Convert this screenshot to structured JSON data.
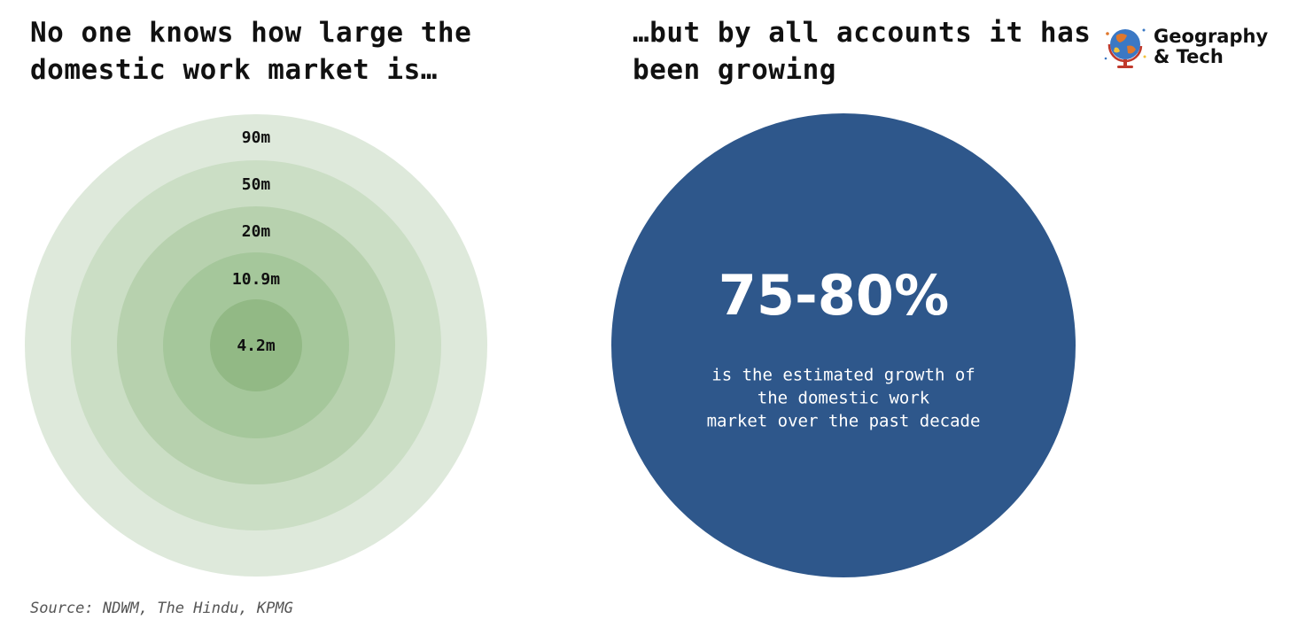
{
  "headline_left": "No one knows how large the domestic work market is…",
  "headline_right": "…but by all accounts it has been growing",
  "brand": {
    "name": "Geography & Tech",
    "logo_icon": "globe-icon"
  },
  "source": "Source: NDWM, The Hindu, KPMG",
  "colors": {
    "rings": [
      "#dee9db",
      "#cbdec5",
      "#b7d1ae",
      "#a5c79b",
      "#92b985"
    ],
    "stat_circle": "#2e578b",
    "label": "#111111",
    "stat_text": "#ffffff"
  },
  "chart_data": [
    {
      "type": "nested-circles",
      "title": "",
      "unit": "m",
      "categories": [
        "90m",
        "50m",
        "20m",
        "10.9m",
        "4.2m"
      ],
      "values": [
        90,
        50,
        20,
        10.9,
        4.2
      ]
    },
    {
      "type": "stat",
      "value_text": "75-80%",
      "range": [
        75,
        80
      ],
      "caption": [
        "is the estimated growth of",
        "the domestic work",
        "market over the past decade"
      ]
    }
  ]
}
